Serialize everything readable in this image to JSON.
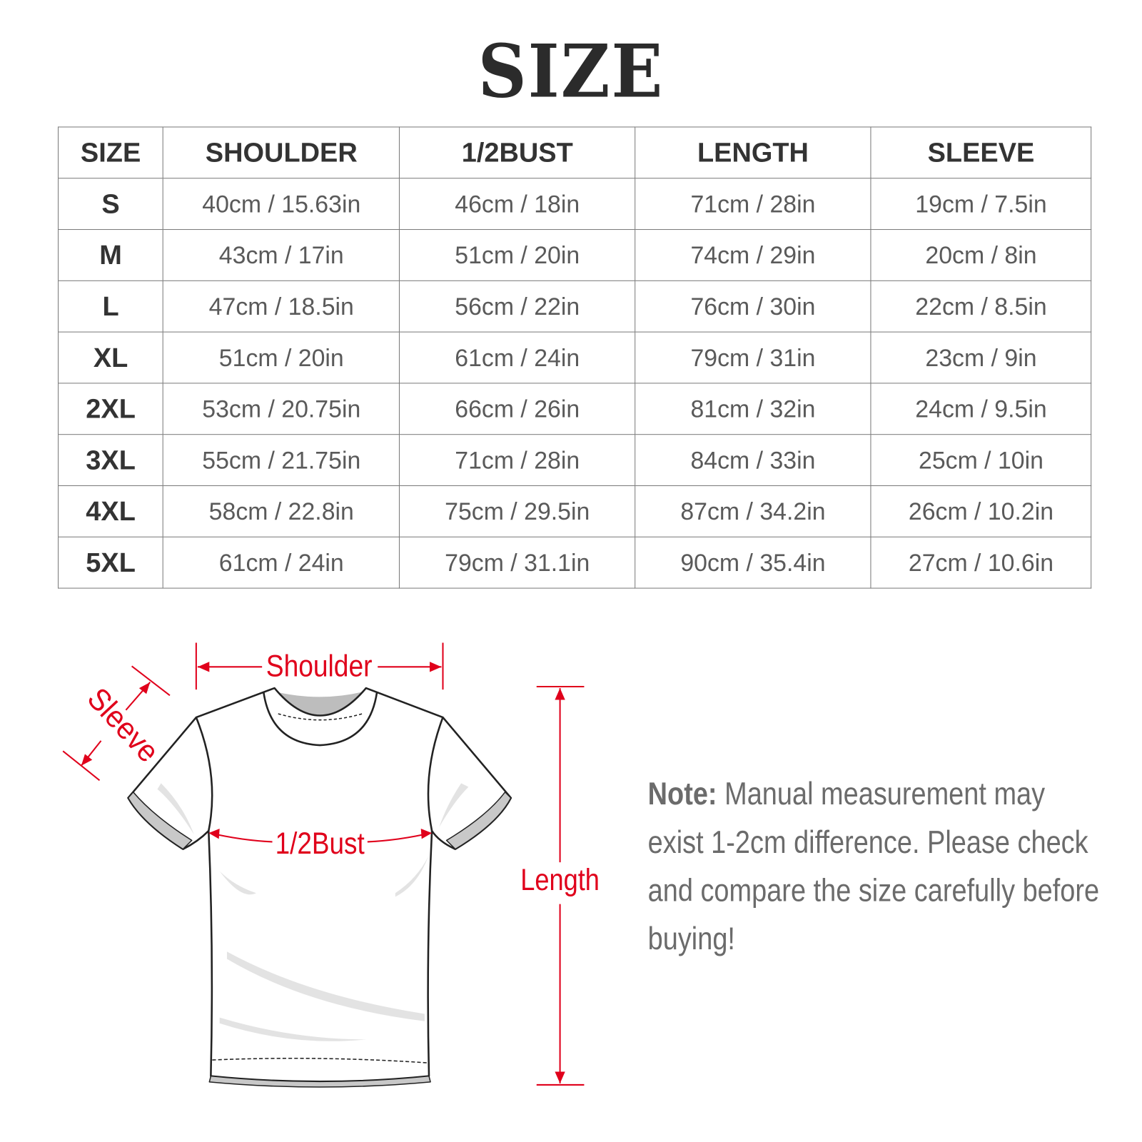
{
  "title": "SIZE",
  "table": {
    "headers": [
      "SIZE",
      "SHOULDER",
      "1/2BUST",
      "LENGTH",
      "SLEEVE"
    ],
    "rows": [
      [
        "S",
        "40cm / 15.63in",
        "46cm / 18in",
        "71cm / 28in",
        "19cm / 7.5in"
      ],
      [
        "M",
        "43cm / 17in",
        "51cm / 20in",
        "74cm / 29in",
        "20cm / 8in"
      ],
      [
        "L",
        "47cm / 18.5in",
        "56cm / 22in",
        "76cm / 30in",
        "22cm / 8.5in"
      ],
      [
        "XL",
        "51cm / 20in",
        "61cm / 24in",
        "79cm / 31in",
        "23cm / 9in"
      ],
      [
        "2XL",
        "53cm / 20.75in",
        "66cm / 26in",
        "81cm / 32in",
        "24cm / 9.5in"
      ],
      [
        "3XL",
        "55cm / 21.75in",
        "71cm / 28in",
        "84cm / 33in",
        "25cm / 10in"
      ],
      [
        "4XL",
        "58cm / 22.8in",
        "75cm / 29.5in",
        "87cm / 34.2in",
        "26cm / 10.2in"
      ],
      [
        "5XL",
        "61cm / 24in",
        "79cm / 31.1in",
        "90cm / 35.4in",
        "27cm / 10.6in"
      ]
    ]
  },
  "diagram": {
    "shoulder": "Shoulder",
    "sleeve": "Sleeve",
    "bust": "1/2Bust",
    "length": "Length",
    "accent_color": "#e0001b"
  },
  "note": {
    "label": "Note:",
    "text": " Manual measurement may exist 1-2cm difference. Please check and compare the size carefully before buying!"
  }
}
